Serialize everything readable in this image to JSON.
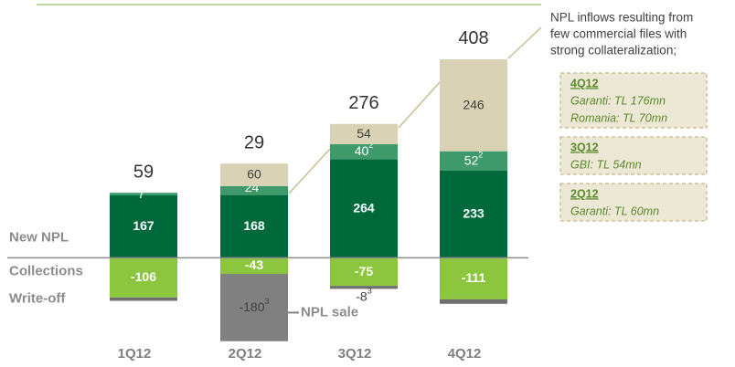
{
  "chart_data": {
    "type": "stacked_bar",
    "categories": [
      "1Q12",
      "2Q12",
      "3Q12",
      "4Q12"
    ],
    "totals": [
      59,
      29,
      276,
      408
    ],
    "ylim": [
      -270,
      670
    ],
    "series": [
      {
        "name": "New NPL",
        "color": "#00693c",
        "values": [
          167,
          168,
          264,
          233
        ]
      },
      {
        "color": "#3f9a6b",
        "footnote": "2",
        "values": [
          7,
          24,
          40,
          52
        ]
      },
      {
        "color": "#d9d2b4",
        "values": [
          null,
          60,
          54,
          246
        ]
      },
      {
        "name": "Collections",
        "color": "#8cc63f",
        "values": [
          -106,
          -43,
          -75,
          -111
        ]
      },
      {
        "name": "Write-off",
        "color": "#6f6f6f",
        "footnote": "3",
        "values": [
          -9,
          null,
          -8,
          -12
        ],
        "value_labels": [
          null,
          null,
          "-8",
          null
        ]
      },
      {
        "name": "NPL sale",
        "color": "#808080",
        "footnote": "3",
        "values": [
          null,
          -180,
          null,
          null
        ]
      }
    ],
    "annotation": [
      "NPL inflows resulting from",
      "few commercial files with",
      "strong collateralization;"
    ],
    "notes": [
      {
        "title": "4Q12",
        "lines": [
          "Garanti: TL 176mn",
          "Romania: TL 70mn"
        ]
      },
      {
        "title": "3Q12",
        "lines": [
          "GBI: TL 54mn"
        ]
      },
      {
        "title": "2Q12",
        "lines": [
          "Garanti: TL 60mn"
        ]
      }
    ]
  }
}
